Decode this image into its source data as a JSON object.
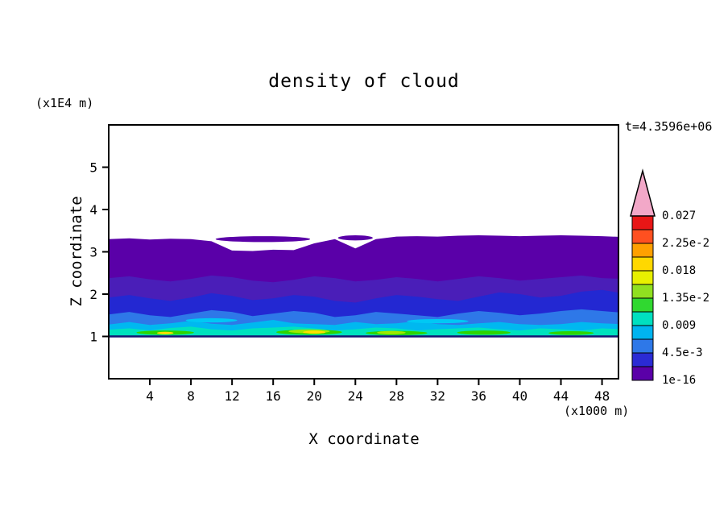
{
  "chart_data": {
    "type": "filled_contour",
    "title": "density of cloud",
    "time_annotation": "t=4.3596e+06",
    "xlabel": "X coordinate",
    "x_unit_note": "(x1000 m)",
    "ylabel": "Z coordinate",
    "y_unit_note": "(x1E4 m)",
    "x_range": [
      0,
      49.6
    ],
    "y_range": [
      0,
      6
    ],
    "x_ticks": [
      4,
      8,
      12,
      16,
      20,
      24,
      28,
      32,
      36,
      40,
      44,
      48
    ],
    "y_ticks": [
      1,
      2,
      3,
      4,
      5
    ],
    "grid": false,
    "legend_position": "right-colorbar",
    "contour_interval": 0.00225,
    "contour_levels_labeled": [
      1e-16,
      0.0045,
      0.009,
      0.0135,
      0.018,
      0.0225,
      0.027
    ],
    "cloud_base": 1.0,
    "base_line_color": "#151570",
    "x_samples": [
      0,
      2,
      4,
      6,
      8,
      10,
      12,
      14,
      16,
      18,
      20,
      22,
      24,
      26,
      28,
      30,
      32,
      34,
      36,
      38,
      40,
      42,
      44,
      46,
      48,
      50
    ],
    "bands": [
      {
        "name": "purple-1e-16",
        "color": "#5A00A8",
        "bottom": 1.0,
        "top": [
          3.3,
          3.32,
          3.29,
          3.31,
          3.3,
          3.25,
          3.03,
          3.02,
          3.05,
          3.04,
          3.2,
          3.3,
          3.08,
          3.3,
          3.36,
          3.37,
          3.36,
          3.38,
          3.39,
          3.38,
          3.37,
          3.38,
          3.39,
          3.38,
          3.37,
          3.35
        ]
      },
      {
        "name": "violet-2.25e-3",
        "color": "#4A1EB8",
        "bottom": 1.02,
        "top": [
          2.38,
          2.42,
          2.35,
          2.3,
          2.36,
          2.44,
          2.4,
          2.32,
          2.28,
          2.34,
          2.42,
          2.38,
          2.3,
          2.34,
          2.4,
          2.36,
          2.3,
          2.36,
          2.42,
          2.38,
          2.32,
          2.36,
          2.4,
          2.44,
          2.38,
          2.36
        ]
      },
      {
        "name": "blue-4.5e-3",
        "color": "#2328D2",
        "bottom": 1.02,
        "top": [
          1.92,
          1.98,
          1.9,
          1.84,
          1.92,
          2.02,
          1.96,
          1.86,
          1.9,
          1.98,
          1.94,
          1.84,
          1.8,
          1.9,
          1.98,
          1.94,
          1.88,
          1.84,
          1.94,
          2.04,
          2.0,
          1.92,
          1.96,
          2.06,
          2.1,
          2.02
        ]
      },
      {
        "name": "brightblue-6.75e-3",
        "color": "#2E78E8",
        "bottom": 1.02,
        "top": [
          1.52,
          1.58,
          1.5,
          1.46,
          1.54,
          1.62,
          1.58,
          1.48,
          1.54,
          1.6,
          1.56,
          1.46,
          1.5,
          1.58,
          1.54,
          1.5,
          1.46,
          1.54,
          1.6,
          1.56,
          1.5,
          1.54,
          1.6,
          1.64,
          1.6,
          1.56
        ]
      },
      {
        "name": "cyan-9e-3",
        "color": "#00B8F0",
        "bottom": 1.02,
        "top": [
          1.28,
          1.34,
          1.27,
          1.31,
          1.37,
          1.3,
          1.27,
          1.33,
          1.39,
          1.31,
          1.29,
          1.27,
          1.34,
          1.29,
          1.31,
          1.36,
          1.29,
          1.27,
          1.31,
          1.34,
          1.29,
          1.27,
          1.29,
          1.34,
          1.31,
          1.29
        ]
      },
      {
        "name": "teal-1.125e-2",
        "color": "#00E2BE",
        "bottom": 1.02,
        "top": [
          1.16,
          1.19,
          1.14,
          1.2,
          1.23,
          1.17,
          1.14,
          1.19,
          1.21,
          1.23,
          1.19,
          1.14,
          1.17,
          1.21,
          1.19,
          1.14,
          1.17,
          1.19,
          1.21,
          1.17,
          1.14,
          1.19,
          1.17,
          1.14,
          1.19,
          1.17
        ]
      }
    ],
    "blobs": [
      {
        "name": "detached-purple-1",
        "cx": 15,
        "cz": 3.3,
        "rx": 4.6,
        "rz": 0.07,
        "color": "#5A00A8"
      },
      {
        "name": "detached-purple-2",
        "cx": 24,
        "cz": 3.33,
        "rx": 1.7,
        "rz": 0.06,
        "color": "#5A00A8"
      },
      {
        "name": "cyan-streak-1",
        "cx": 10,
        "cz": 1.38,
        "rx": 2.5,
        "rz": 0.05,
        "color": "#00C8F4"
      },
      {
        "name": "cyan-streak-2",
        "cx": 32,
        "cz": 1.36,
        "rx": 3.0,
        "rz": 0.05,
        "color": "#00C8F4"
      },
      {
        "name": "green-streak-1",
        "cx": 5.5,
        "cz": 1.09,
        "rx": 2.8,
        "rz": 0.05,
        "color": "#2ED400"
      },
      {
        "name": "green-streak-2",
        "cx": 19.5,
        "cz": 1.1,
        "rx": 3.2,
        "rz": 0.06,
        "color": "#2ED400"
      },
      {
        "name": "green-streak-3",
        "cx": 28,
        "cz": 1.08,
        "rx": 3.0,
        "rz": 0.05,
        "color": "#2ED400"
      },
      {
        "name": "green-streak-4",
        "cx": 36.5,
        "cz": 1.09,
        "rx": 2.6,
        "rz": 0.05,
        "color": "#2ED400"
      },
      {
        "name": "green-streak-5",
        "cx": 45,
        "cz": 1.08,
        "rx": 2.2,
        "rz": 0.045,
        "color": "#2ED400"
      },
      {
        "name": "yellowgreen-streak-1",
        "cx": 19.5,
        "cz": 1.12,
        "rx": 2.0,
        "rz": 0.045,
        "color": "#A0E800"
      },
      {
        "name": "yellowgreen-streak-2",
        "cx": 27.5,
        "cz": 1.09,
        "rx": 1.4,
        "rz": 0.04,
        "color": "#A0E800"
      },
      {
        "name": "yellow-streak-1",
        "cx": 20,
        "cz": 1.1,
        "rx": 1.1,
        "rz": 0.035,
        "color": "#FFE000"
      },
      {
        "name": "yellow-streak-2",
        "cx": 5.5,
        "cz": 1.08,
        "rx": 0.8,
        "rz": 0.03,
        "color": "#FFE000"
      }
    ],
    "colorbar": {
      "labels_top_to_bottom": [
        "0.027",
        "2.25e-2",
        "0.018",
        "1.35e-2",
        "0.009",
        "4.5e-3",
        "1e-16"
      ],
      "palette_bottom_to_top": [
        "#5A00A8",
        "#2B2BD5",
        "#2E78E8",
        "#00B4F0",
        "#00E0C0",
        "#30D830",
        "#90E020",
        "#E8F000",
        "#FFD800",
        "#FFA000",
        "#FF5020",
        "#E81616"
      ],
      "arrow_color": "#F2A8C8"
    }
  }
}
